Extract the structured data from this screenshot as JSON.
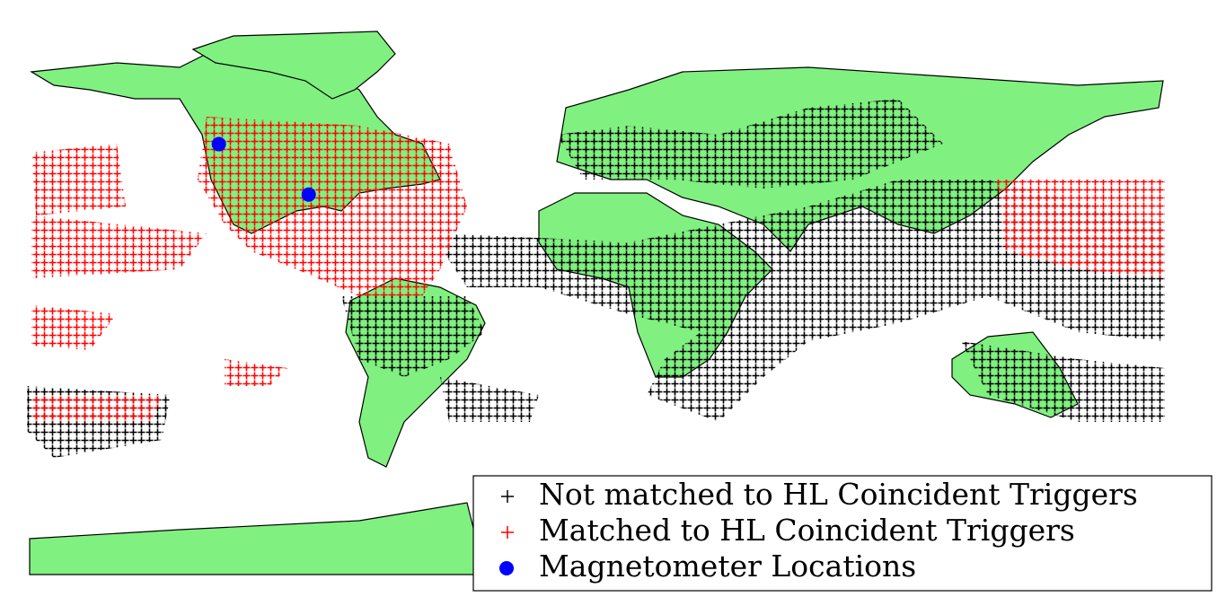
{
  "chart_data": {
    "type": "map",
    "series": [
      {
        "name": "Not matched to HL Coincident Triggers",
        "color": "#000000",
        "marker": "plus"
      },
      {
        "name": "Matched to HL Coincident Triggers",
        "color": "#ff0000",
        "marker": "plus"
      },
      {
        "name": "Magnetometer Locations",
        "color": "#0000ff",
        "marker": "circle",
        "lon": [
          -120,
          -91.5
        ],
        "lat": [
          42,
          26
        ]
      }
    ],
    "xlim": [
      -180,
      180
    ],
    "ylim": [
      -90,
      90
    ]
  }
}
